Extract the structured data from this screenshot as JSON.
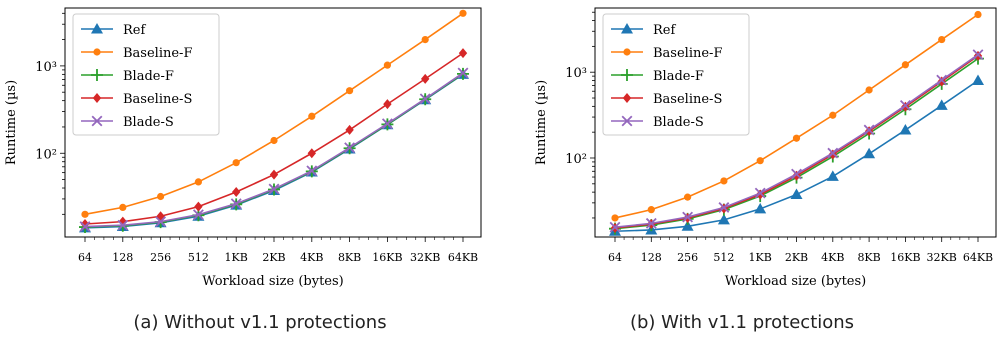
{
  "figure": {
    "captions": [
      "(a) Without v1.1 protections",
      "(b) With v1.1 protections"
    ]
  },
  "chart_data": [
    {
      "type": "line",
      "title": "",
      "xlabel": "Workload size (bytes)",
      "ylabel": "Runtime (µs)",
      "yscale": "log",
      "ylim": [
        11,
        4600
      ],
      "yticks": [
        100,
        1000
      ],
      "ytick_labels": [
        "10²",
        "10³"
      ],
      "categories": [
        "64",
        "128",
        "256",
        "512",
        "1KB",
        "2KB",
        "4KB",
        "8KB",
        "16KB",
        "32KB",
        "64KB"
      ],
      "legend_position": "top-left",
      "grid": false,
      "series": [
        {
          "name": "Ref",
          "color": "#1f77b4",
          "marker": "triangle",
          "values": [
            14,
            14.5,
            16,
            19,
            25.5,
            37.5,
            61,
            112,
            212,
            410,
            800
          ]
        },
        {
          "name": "Baseline-F",
          "color": "#ff7f0e",
          "marker": "circle",
          "values": [
            20,
            24,
            32,
            47,
            78,
            140,
            265,
            520,
            1020,
            2000,
            4000
          ]
        },
        {
          "name": "Blade-F",
          "color": "#2ca02c",
          "marker": "plus",
          "values": [
            14.3,
            14.8,
            16.3,
            19.5,
            26,
            38.5,
            62,
            114,
            214,
            415,
            810
          ]
        },
        {
          "name": "Baseline-S",
          "color": "#d62728",
          "marker": "diamond",
          "values": [
            15.5,
            16.5,
            19,
            24.5,
            36,
            57,
            100,
            185,
            365,
            710,
            1400
          ]
        },
        {
          "name": "Blade-S",
          "color": "#9467bd",
          "marker": "x",
          "values": [
            14.5,
            15,
            16.5,
            19.8,
            26.5,
            39,
            63,
            116,
            218,
            420,
            830
          ]
        }
      ]
    },
    {
      "type": "line",
      "title": "",
      "xlabel": "Workload size (bytes)",
      "ylabel": "Runtime (µs)",
      "yscale": "log",
      "ylim": [
        12,
        5600
      ],
      "yticks": [
        100,
        1000
      ],
      "ytick_labels": [
        "10²",
        "10³"
      ],
      "categories": [
        "64",
        "128",
        "256",
        "512",
        "1KB",
        "2KB",
        "4KB",
        "8KB",
        "16KB",
        "32KB",
        "64KB"
      ],
      "legend_position": "top-left",
      "grid": false,
      "series": [
        {
          "name": "Ref",
          "color": "#1f77b4",
          "marker": "triangle",
          "values": [
            14,
            14.5,
            16,
            19,
            25.5,
            37.5,
            61,
            112,
            212,
            410,
            800
          ]
        },
        {
          "name": "Baseline-F",
          "color": "#ff7f0e",
          "marker": "circle",
          "values": [
            20,
            25,
            35,
            54,
            93,
            170,
            315,
            620,
            1220,
            2400,
            4700
          ]
        },
        {
          "name": "Blade-F",
          "color": "#2ca02c",
          "marker": "plus",
          "values": [
            15,
            16.5,
            19.5,
            25,
            36,
            59,
            104,
            193,
            370,
            730,
            1440
          ]
        },
        {
          "name": "Baseline-S",
          "color": "#d62728",
          "marker": "diamond",
          "values": [
            15.3,
            17,
            20,
            25.8,
            37.5,
            62,
            110,
            205,
            395,
            780,
            1550
          ]
        },
        {
          "name": "Blade-S",
          "color": "#9467bd",
          "marker": "x",
          "values": [
            15.6,
            17.3,
            20.5,
            26.5,
            39,
            65,
            114,
            212,
            410,
            810,
            1600
          ]
        }
      ]
    }
  ]
}
